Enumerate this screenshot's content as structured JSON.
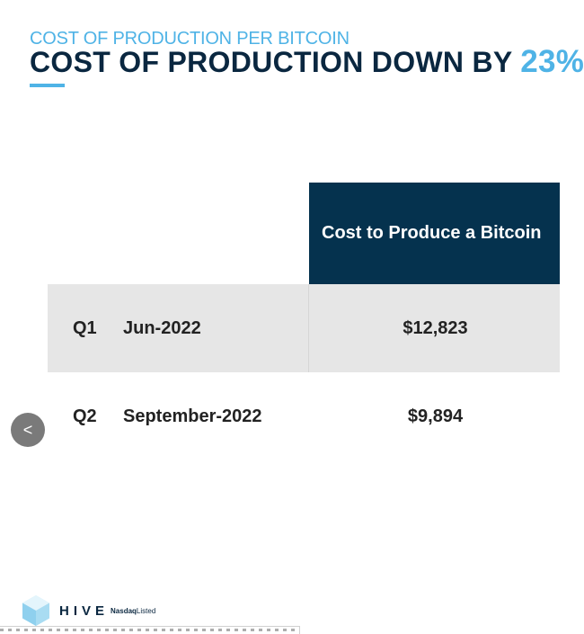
{
  "header": {
    "subtitle": "COST OF PRODUCTION PER BITCOIN",
    "title_prefix": "COST OF PRODUCTION DOWN BY ",
    "title_highlight": "23%"
  },
  "table": {
    "column_header": "Cost to Produce a Bitcoin",
    "rows": [
      {
        "quarter": "Q1",
        "period": "Jun-2022",
        "cost": "$12,823"
      },
      {
        "quarter": "Q2",
        "period": "September-2022",
        "cost": "$9,894"
      }
    ]
  },
  "nav": {
    "prev_label": "<"
  },
  "logo": {
    "name": "HIVE",
    "listing_brand": "Nasdaq",
    "listing_suffix": "Listed"
  },
  "colors": {
    "accent": "#4fb3e6",
    "header_bg": "#05324e",
    "title": "#0a2740",
    "row_shade": "#e6e6e6"
  }
}
